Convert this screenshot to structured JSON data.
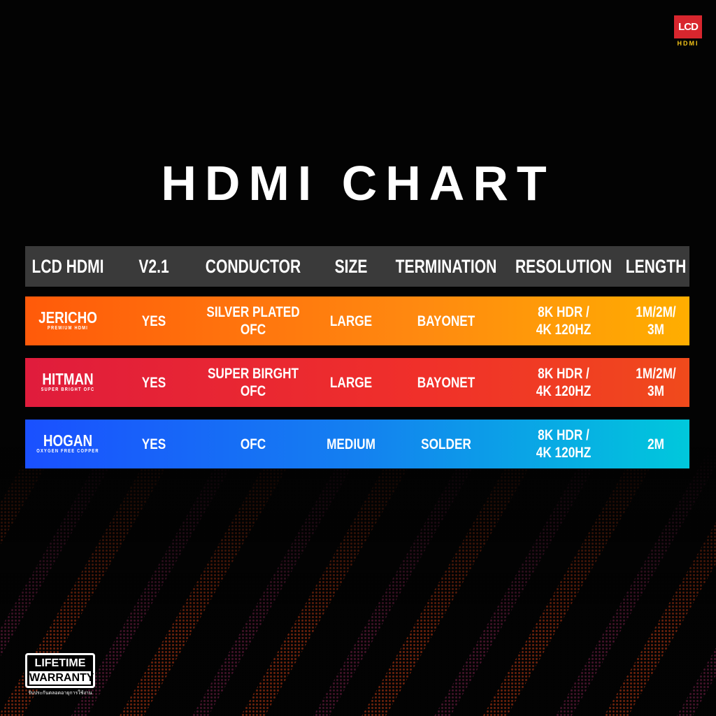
{
  "logo": {
    "top": "LCD",
    "bottom": "HDMI"
  },
  "title": "HDMI CHART",
  "table": {
    "headers": [
      "LCD HDMI",
      "V2.1",
      "CONDUCTOR",
      "SIZE",
      "TERMINATION",
      "RESOLUTION",
      "LENGTH"
    ],
    "rows": [
      {
        "brand": "JERICHO",
        "tagline": "PREMIUM HDMI",
        "cells": [
          "YES",
          "SILVER PLATED\nOFC",
          "LARGE",
          "BAYONET",
          "8K HDR /\n4K 120HZ",
          "1M/2M/\n3M"
        ]
      },
      {
        "brand": "HITMAN",
        "tagline": "SUPER BRIGHT OFC",
        "cells": [
          "YES",
          "SUPER BIRGHT\nOFC",
          "LARGE",
          "BAYONET",
          "8K HDR /\n4K 120HZ",
          "1M/2M/\n3M"
        ]
      },
      {
        "brand": "HOGAN",
        "tagline": "OXYGEN FREE COPPER",
        "cells": [
          "YES",
          "OFC",
          "MEDIUM",
          "SOLDER",
          "8K HDR /\n4K 120HZ",
          "2M"
        ]
      }
    ]
  },
  "badge": {
    "line1": "LIFETIME",
    "line2": "WARRANTY",
    "caption": "รับประกันตลอดอายุการใช้งาน"
  }
}
